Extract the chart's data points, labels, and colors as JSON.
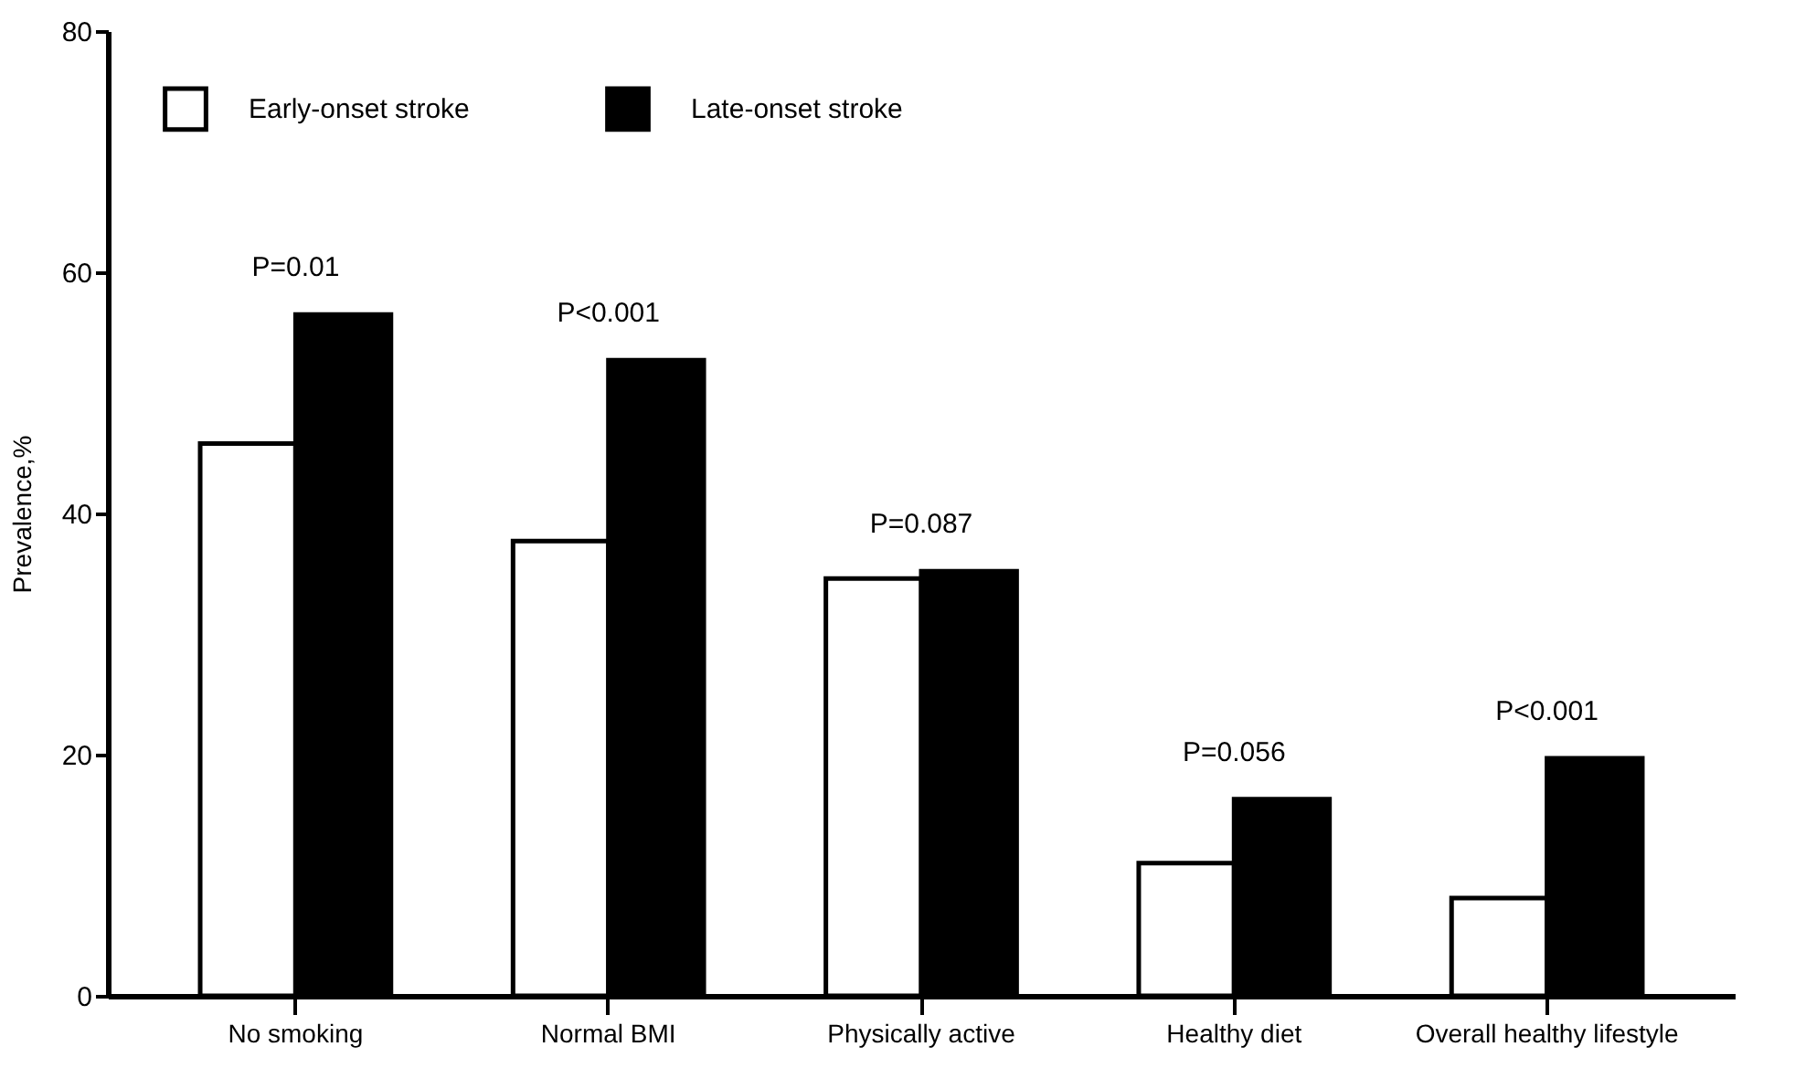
{
  "chart_data": {
    "type": "bar",
    "ylabel": "Prevalence,%",
    "categories": [
      "No smoking",
      "Normal BMI",
      "Physically active",
      "Healthy diet",
      "Overall healthy lifestyle"
    ],
    "series": [
      {
        "name": "Early-onset stroke",
        "color": "#ffffff",
        "values": [
          45.8,
          37.7,
          34.6,
          11.0,
          8.1
        ]
      },
      {
        "name": "Late-onset stroke",
        "color": "#000000",
        "values": [
          56.5,
          52.7,
          35.2,
          16.3,
          19.7
        ]
      }
    ],
    "ylim": [
      0,
      80
    ],
    "yticks": [
      0,
      20,
      40,
      60,
      80
    ],
    "grid": false,
    "legend": "top left",
    "annotations": [
      "P=0.01",
      "P<0.001",
      "P=0.087",
      "P=0.056",
      "P<0.001"
    ]
  }
}
